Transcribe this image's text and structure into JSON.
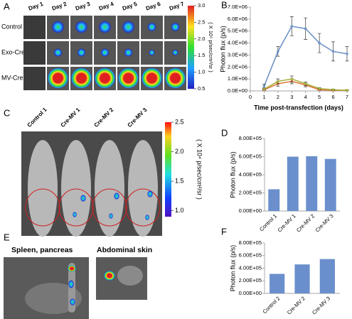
{
  "panels": {
    "a": {
      "letter": "A",
      "days": [
        "Day 1",
        "Day 2",
        "Day 3",
        "Day 4",
        "Day 5",
        "Day 6",
        "Day 7"
      ],
      "rows": [
        "Control",
        "Exo-Cre",
        "MV-Cre"
      ],
      "colorbar": {
        "unit": "( X 10⁵ p/sec/cm²/sr )",
        "lim": [
          0.5,
          3
        ],
        "ticks": [
          {
            "value": 3,
            "label": "3.0"
          },
          2.5,
          {
            "value": 2,
            "label": "2.0"
          },
          1.5,
          {
            "value": 1,
            "label": "1.0"
          },
          0.5
        ]
      }
    },
    "c": {
      "letter": "C",
      "mice": [
        "Control 1",
        "Cre-MV 1",
        "Cre-MV 2",
        "Cre-MV 3"
      ],
      "colorbar": {
        "unit": "( X 10⁴ p/sec/cm²/sr )",
        "lim": [
          0.9,
          2.5
        ],
        "ticks": [
          2.5,
          {
            "value": 2,
            "label": "2.0"
          },
          1.5,
          {
            "value": 1,
            "label": "1.0"
          }
        ]
      }
    },
    "e": {
      "letter": "E",
      "images": [
        "Spleen, pancreas",
        "Abdominal skin"
      ]
    }
  },
  "chart_data": [
    {
      "type": "line",
      "panel": "B",
      "y_label": "Photon flux (p/s)",
      "x_label": "Time post-transfection (days)",
      "x": [
        1,
        2,
        3,
        4,
        5,
        6,
        7
      ],
      "xlim": [
        0,
        7
      ],
      "xticks": [
        0,
        1,
        2,
        3,
        4,
        5,
        6,
        7
      ],
      "ylim": [
        0,
        7000000
      ],
      "yticks": [
        {
          "value": 0,
          "label": "0.0E+00"
        },
        {
          "value": 1000000,
          "label": "1.0E+06"
        },
        {
          "value": 2000000,
          "label": "2.0E+06"
        },
        {
          "value": 3000000,
          "label": "3.0E+06"
        },
        {
          "value": 4000000,
          "label": "4.0E+06"
        },
        {
          "value": 5000000,
          "label": "5.0E+06"
        },
        {
          "value": 6000000,
          "label": "6.0E+06"
        },
        {
          "value": 7000000,
          "label": "7.0E+06"
        }
      ],
      "series": [
        {
          "color": "#6f94c8",
          "values": [
            400000,
            3300000,
            5400000,
            5200000,
            4000000,
            3300000,
            3100000
          ],
          "errors": [
            150000,
            400000,
            800000,
            900000,
            800000,
            800000,
            600000
          ]
        },
        {
          "color": "#e07a3a",
          "values": [
            100000,
            600000,
            800000,
            500000,
            100000,
            50000,
            50000
          ],
          "errors": [
            50000,
            200000,
            200000,
            150000,
            80000,
            40000,
            40000
          ]
        },
        {
          "color": "#a8b040",
          "values": [
            150000,
            800000,
            1000000,
            600000,
            200000,
            100000,
            50000
          ],
          "errors": [
            50000,
            200000,
            250000,
            150000,
            80000,
            50000,
            40000
          ]
        }
      ]
    },
    {
      "type": "bar",
      "panel": "D",
      "y_label": "Photon flux (p/s)",
      "color": "#6a8fcc",
      "categories": [
        "Control 1",
        "Cre-MV 1",
        "Cre-MV 2",
        "Cre-MV 3"
      ],
      "values": [
        240000,
        600000,
        605000,
        575000
      ],
      "ylim": [
        0,
        800000
      ],
      "yticks": [
        {
          "value": 0,
          "label": "0.00E+00"
        },
        {
          "value": 200000,
          "label": "2.00E+05"
        },
        {
          "value": 400000,
          "label": "4.00E+05"
        },
        {
          "value": 600000,
          "label": "6.00E+05"
        },
        {
          "value": 800000,
          "label": "8.00E+05"
        }
      ]
    },
    {
      "type": "bar",
      "panel": "F",
      "y_label": "Photon flux (p/s)",
      "color": "#6a8fcc",
      "categories": [
        "Control 2",
        "Cre-MV 2",
        "Cre-MV 3"
      ],
      "values": [
        310000,
        460000,
        545000
      ],
      "ylim": [
        0,
        800000
      ],
      "yticks": [
        {
          "value": 0,
          "label": "0.00E+00"
        },
        {
          "value": 200000,
          "label": "2.00E+05"
        },
        {
          "value": 400000,
          "label": "4.00E+05"
        },
        {
          "value": 600000,
          "label": "6.00E+05"
        },
        {
          "value": 800000,
          "label": "8.00E+05"
        }
      ]
    }
  ]
}
